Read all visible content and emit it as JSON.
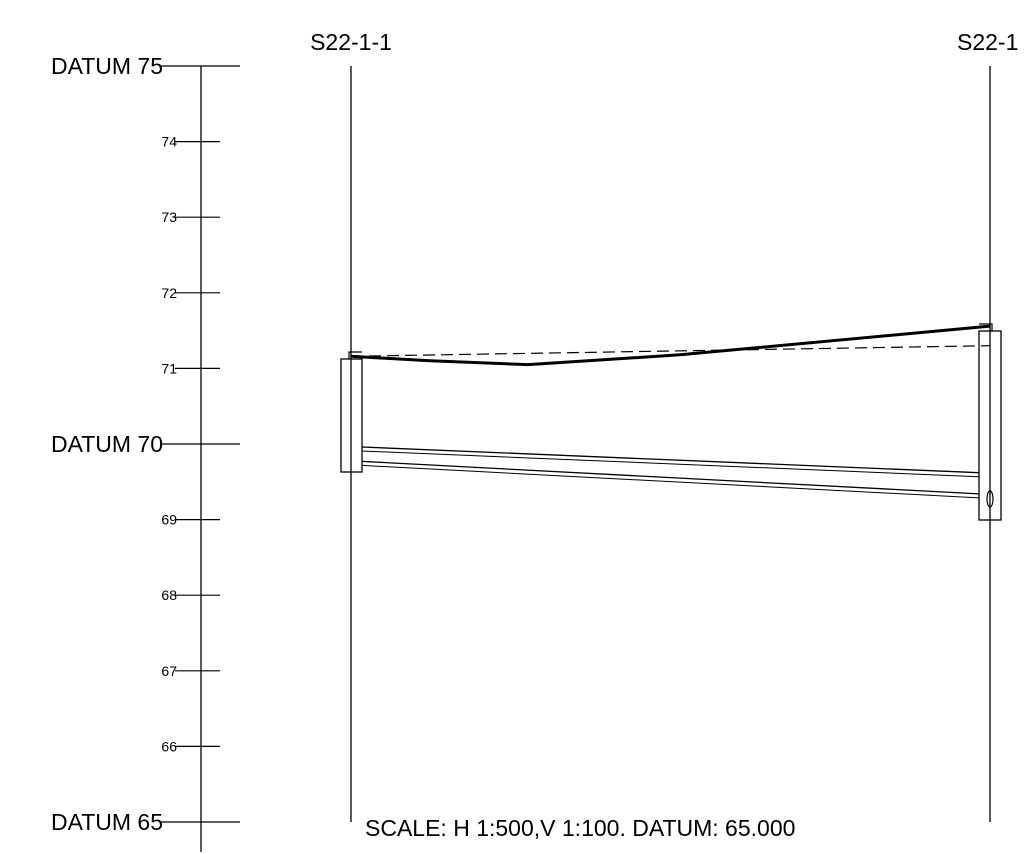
{
  "title": "",
  "scale_note": "SCALE: H 1:500,V 1:100. DATUM: 65.000",
  "manholes": [
    {
      "name": "S22-1-1"
    },
    {
      "name": "S22-1"
    }
  ],
  "vertical_axis": {
    "unit": "m",
    "range": [
      65,
      75
    ],
    "datum_labels": [
      {
        "level": 75,
        "text": "DATUM 75"
      },
      {
        "level": 70,
        "text": "DATUM 70"
      },
      {
        "level": 65,
        "text": "DATUM 65"
      }
    ],
    "tick_labels": [
      {
        "level": 74,
        "text": "74"
      },
      {
        "level": 73,
        "text": "73"
      },
      {
        "level": 72,
        "text": "72"
      },
      {
        "level": 71,
        "text": "71"
      },
      {
        "level": 69,
        "text": "69"
      },
      {
        "level": 68,
        "text": "68"
      },
      {
        "level": 67,
        "text": "67"
      },
      {
        "level": 66,
        "text": "66"
      }
    ]
  },
  "profile": {
    "ground_line_levels": [
      71.16,
      71.1,
      71.05,
      71.18,
      71.56
    ],
    "design_line_levels": [
      71.16,
      71.3
    ],
    "pipe_top_levels": [
      69.96,
      69.62
    ],
    "pipe_invert_levels": [
      69.77,
      69.34
    ]
  },
  "colors": {
    "line": "#000000",
    "background": "#ffffff"
  }
}
